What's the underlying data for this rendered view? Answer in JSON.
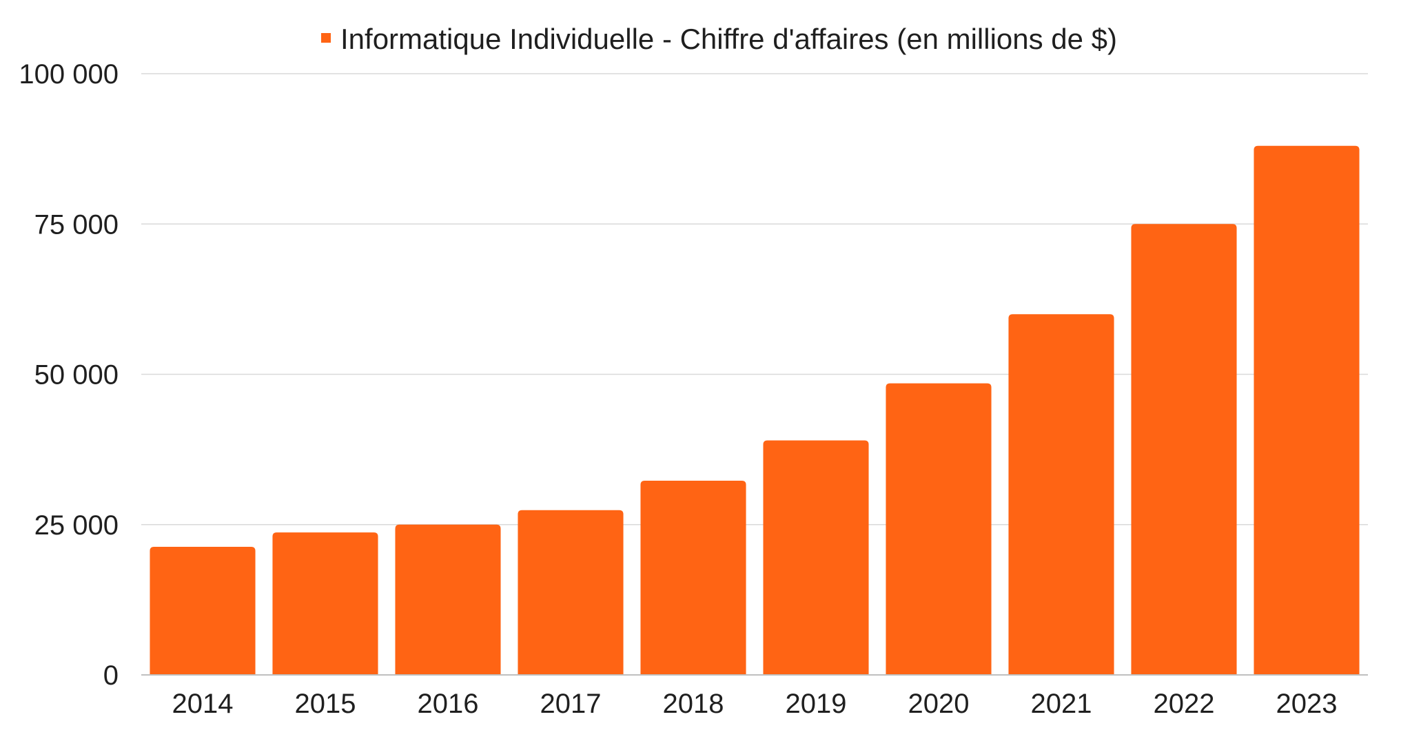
{
  "chart_data": {
    "type": "bar",
    "categories": [
      "2014",
      "2015",
      "2016",
      "2017",
      "2018",
      "2019",
      "2020",
      "2021",
      "2022",
      "2023"
    ],
    "series": [
      {
        "name": "Informatique Individuelle - Chiffre d'affaires (en millions de $)",
        "values": [
          21300,
          23700,
          25000,
          27400,
          32300,
          39000,
          48500,
          60000,
          75000,
          88000
        ]
      }
    ],
    "title": "",
    "xlabel": "",
    "ylabel": "",
    "ylim": [
      0,
      100000
    ],
    "yticks": [
      0,
      25000,
      50000,
      75000,
      100000
    ],
    "ytick_labels": [
      "0",
      "25 000",
      "50 000",
      "75 000",
      "100 000"
    ],
    "grid": true,
    "legend_position": "top-center",
    "colors": {
      "bar": "#ff6414",
      "grid": "#d9d9d9",
      "text": "#1f1f1f"
    }
  }
}
